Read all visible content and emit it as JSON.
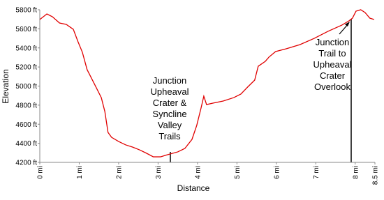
{
  "chart_data": {
    "type": "line",
    "x_label": "Distance",
    "y_label": "Elevation",
    "x": [
      0,
      0.18,
      0.32,
      0.5,
      0.67,
      0.85,
      0.97,
      1.08,
      1.2,
      1.38,
      1.56,
      1.65,
      1.73,
      1.82,
      2.0,
      2.18,
      2.35,
      2.53,
      2.71,
      2.88,
      3.06,
      3.24,
      3.5,
      3.68,
      3.86,
      3.98,
      4.09,
      4.16,
      4.23,
      4.39,
      4.65,
      4.92,
      5.1,
      5.27,
      5.45,
      5.54,
      5.72,
      5.81,
      5.98,
      6.25,
      6.6,
      6.96,
      7.31,
      7.66,
      7.84,
      7.93,
      8.02,
      8.14,
      8.25,
      8.37,
      8.48
    ],
    "series": [
      {
        "color": "#e00000",
        "values": [
          5698,
          5756,
          5727,
          5661,
          5647,
          5595,
          5464,
          5354,
          5172,
          5026,
          4879,
          4733,
          4514,
          4463,
          4419,
          4383,
          4361,
          4331,
          4295,
          4258,
          4258,
          4280,
          4310,
          4346,
          4441,
          4587,
          4770,
          4894,
          4806,
          4821,
          4843,
          4879,
          4916,
          4989,
          5062,
          5208,
          5259,
          5303,
          5362,
          5391,
          5435,
          5500,
          5574,
          5639,
          5683,
          5712,
          5785,
          5800,
          5771,
          5712,
          5698
        ]
      }
    ],
    "xlim": [
      0,
      8.5
    ],
    "ylim": [
      4200,
      5800
    ],
    "xticks": [
      {
        "value": 0,
        "label": "0 mi"
      },
      {
        "value": 1,
        "label": "1 mi"
      },
      {
        "value": 2,
        "label": "2 mi"
      },
      {
        "value": 3,
        "label": "3 mi"
      },
      {
        "value": 4,
        "label": "4 mi"
      },
      {
        "value": 5,
        "label": "5 mi"
      },
      {
        "value": 6,
        "label": "6 mi"
      },
      {
        "value": 7,
        "label": "7 mi"
      },
      {
        "value": 8,
        "label": "8 mi"
      },
      {
        "value": 8.5,
        "label": "8.5 mi"
      }
    ],
    "yticks": [
      {
        "value": 4200,
        "label": "4200 ft"
      },
      {
        "value": 4400,
        "label": "4400 ft"
      },
      {
        "value": 4600,
        "label": "4600 ft"
      },
      {
        "value": 4800,
        "label": "4800 ft"
      },
      {
        "value": 5000,
        "label": "5000 ft"
      },
      {
        "value": 5200,
        "label": "5200 ft"
      },
      {
        "value": 5400,
        "label": "5400 ft"
      },
      {
        "value": 5600,
        "label": "5600 ft"
      },
      {
        "value": 5800,
        "label": "5800 ft"
      }
    ],
    "annotations": [
      {
        "lines": [
          "Junction",
          "Upheaval",
          "Crater &",
          "Syncline",
          "Valley",
          "Trails"
        ]
      },
      {
        "lines": [
          "Junction",
          "Trail to",
          "Upheaval",
          "Crater",
          "Overlook"
        ]
      }
    ]
  }
}
